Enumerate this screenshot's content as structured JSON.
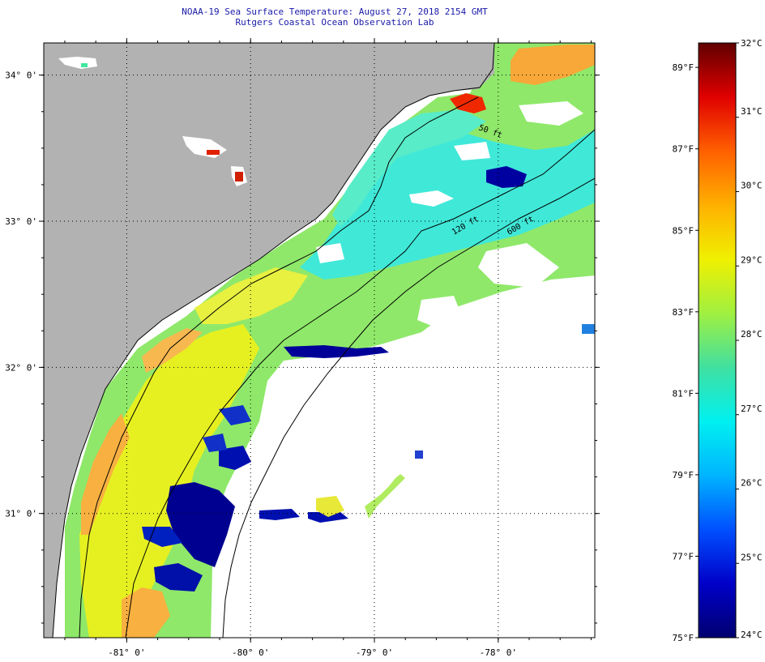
{
  "header": {
    "title_line1": "NOAA-19 Sea Surface Temperature:  August 27, 2018 2154 GMT",
    "title_line2": "Rutgers Coastal Ocean Observation Lab"
  },
  "map": {
    "lon_range": [
      -81.67,
      -77.22
    ],
    "lat_range": [
      30.15,
      34.22
    ],
    "lat_labels": [
      {
        "value": 34,
        "label": "34° 0'"
      },
      {
        "value": 33,
        "label": "33° 0'"
      },
      {
        "value": 32,
        "label": "32° 0'"
      },
      {
        "value": 31,
        "label": "31° 0'"
      }
    ],
    "lon_labels": [
      {
        "value": -81,
        "label": "-81° 0'"
      },
      {
        "value": -80,
        "label": "-80° 0'"
      },
      {
        "value": -79,
        "label": "-79° 0'"
      },
      {
        "value": -78,
        "label": "-78° 0'"
      }
    ],
    "isobaths": [
      {
        "depth": "50 ft",
        "label": "50 ft"
      },
      {
        "depth": "120 ft",
        "label": "120 ft"
      },
      {
        "depth": "600 ft",
        "label": "600 ft"
      }
    ],
    "colors": {
      "land": "#b2b2b2",
      "no_data": "#ffffff",
      "grid": "#000000"
    }
  },
  "colorbar": {
    "celsius_range": [
      24,
      32
    ],
    "fahrenheit_range": [
      75,
      89.6
    ],
    "celsius_labels": [
      {
        "value": 32,
        "label": "32°C"
      },
      {
        "value": 31,
        "label": "31°C"
      },
      {
        "value": 30,
        "label": "30°C"
      },
      {
        "value": 29,
        "label": "29°C"
      },
      {
        "value": 28,
        "label": "28°C"
      },
      {
        "value": 27,
        "label": "27°C"
      },
      {
        "value": 26,
        "label": "26°C"
      },
      {
        "value": 25,
        "label": "25°C"
      },
      {
        "value": 24,
        "label": "24°C"
      }
    ],
    "fahrenheit_labels": [
      {
        "value": 89,
        "label": "89°F"
      },
      {
        "value": 87,
        "label": "87°F"
      },
      {
        "value": 85,
        "label": "85°F"
      },
      {
        "value": 83,
        "label": "83°F"
      },
      {
        "value": 81,
        "label": "81°F"
      },
      {
        "value": 79,
        "label": "79°F"
      },
      {
        "value": 77,
        "label": "77°F"
      },
      {
        "value": 75,
        "label": "75°F"
      }
    ],
    "gradient_colors": [
      "#000070",
      "#0000c8",
      "#0050ff",
      "#00b4ff",
      "#00f0f0",
      "#40e0a0",
      "#a0f040",
      "#f0f000",
      "#ffb000",
      "#ff6000",
      "#e00000",
      "#600000"
    ]
  }
}
